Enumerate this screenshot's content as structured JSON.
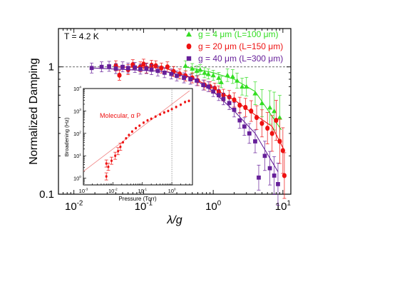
{
  "chart_data": [
    {
      "type": "scatter",
      "xlabel": "λ/g",
      "ylabel": "Normalized Damping",
      "xscale": "log",
      "yscale": "log",
      "xlim": [
        0.006,
        13
      ],
      "ylim": [
        0.1,
        2
      ],
      "x_ticks": [
        0.01,
        0.1,
        1,
        10
      ],
      "x_tick_labels": [
        "10",
        "10",
        "10",
        "10"
      ],
      "x_tick_exponents": [
        "-2",
        "-1",
        "0",
        "1"
      ],
      "y_ticks": [
        0.1,
        1
      ],
      "y_tick_labels": [
        "0.1",
        "1"
      ],
      "reference_line": {
        "y": 1,
        "style": "dashed"
      },
      "annotation": "T = 4.2 K",
      "legend_position": "top-right",
      "series": [
        {
          "name": "g =  4 μm (L=100 μm)",
          "color": "#33dd22",
          "marker": "triangle",
          "points": [
            [
              0.4,
              1.02
            ],
            [
              0.5,
              0.97
            ],
            [
              0.58,
              0.93
            ],
            [
              0.65,
              0.95
            ],
            [
              0.75,
              0.9
            ],
            [
              0.85,
              0.88
            ],
            [
              1.0,
              0.86
            ],
            [
              1.2,
              0.82
            ],
            [
              1.3,
              0.76
            ],
            [
              1.6,
              0.86
            ],
            [
              1.9,
              0.84
            ],
            [
              2.2,
              0.78
            ],
            [
              2.6,
              0.7
            ],
            [
              3.0,
              0.7
            ],
            [
              4.0,
              0.62
            ],
            [
              5.0,
              0.52
            ],
            [
              6.5,
              0.48
            ],
            [
              7.5,
              0.45
            ],
            [
              9.0,
              0.4
            ]
          ],
          "line": [
            [
              0.4,
              1.0
            ],
            [
              1.0,
              0.9
            ],
            [
              2.0,
              0.8
            ],
            [
              4.0,
              0.64
            ],
            [
              9.5,
              0.32
            ]
          ]
        },
        {
          "name": "g = 20 μm (L=150 μm)",
          "color": "#ee1111",
          "marker": "circle",
          "points": [
            [
              0.04,
              1.02
            ],
            [
              0.045,
              0.86
            ],
            [
              0.06,
              0.95
            ],
            [
              0.07,
              1.04
            ],
            [
              0.09,
              1.0
            ],
            [
              0.1,
              1.05
            ],
            [
              0.11,
              0.98
            ],
            [
              0.13,
              1.03
            ],
            [
              0.15,
              1.02
            ],
            [
              0.18,
              0.98
            ],
            [
              0.22,
              1.0
            ],
            [
              0.27,
              0.92
            ],
            [
              0.33,
              0.88
            ],
            [
              0.4,
              0.85
            ],
            [
              0.5,
              0.82
            ],
            [
              0.6,
              0.78
            ],
            [
              0.75,
              0.72
            ],
            [
              0.9,
              0.7
            ],
            [
              1.05,
              0.68
            ],
            [
              1.2,
              0.64
            ],
            [
              1.4,
              0.6
            ],
            [
              1.7,
              0.58
            ],
            [
              2.0,
              0.55
            ],
            [
              2.4,
              0.5
            ],
            [
              2.9,
              0.48
            ],
            [
              3.5,
              0.45
            ],
            [
              4.2,
              0.4
            ],
            [
              5.0,
              0.36
            ],
            [
              6.0,
              0.33
            ],
            [
              7.0,
              0.3
            ],
            [
              8.0,
              0.38
            ],
            [
              9.0,
              0.26
            ],
            [
              10.0,
              0.22
            ],
            [
              10.5,
              0.14
            ]
          ],
          "line": [
            [
              0.04,
              1.0
            ],
            [
              0.2,
              0.98
            ],
            [
              0.5,
              0.82
            ],
            [
              1.0,
              0.68
            ],
            [
              2.0,
              0.55
            ],
            [
              4.0,
              0.42
            ],
            [
              7.0,
              0.34
            ],
            [
              10.5,
              0.22
            ]
          ]
        },
        {
          "name": "g = 40 μm (L=300 μm)",
          "color": "#661f99",
          "marker": "square",
          "points": [
            [
              0.018,
              0.98
            ],
            [
              0.025,
              1.0
            ],
            [
              0.032,
              1.01
            ],
            [
              0.04,
              0.97
            ],
            [
              0.05,
              1.0
            ],
            [
              0.06,
              0.98
            ],
            [
              0.075,
              0.99
            ],
            [
              0.09,
              0.96
            ],
            [
              0.11,
              0.97
            ],
            [
              0.13,
              0.95
            ],
            [
              0.16,
              0.93
            ],
            [
              0.2,
              0.9
            ],
            [
              0.25,
              0.88
            ],
            [
              0.3,
              0.85
            ],
            [
              0.38,
              0.82
            ],
            [
              0.47,
              0.8
            ],
            [
              0.58,
              0.78
            ],
            [
              0.72,
              0.72
            ],
            [
              0.85,
              0.7
            ],
            [
              1.0,
              0.64
            ],
            [
              1.2,
              0.6
            ],
            [
              1.4,
              0.56
            ],
            [
              1.7,
              0.52
            ],
            [
              2.0,
              0.46
            ],
            [
              2.4,
              0.38
            ],
            [
              2.8,
              0.34
            ],
            [
              3.3,
              0.3
            ],
            [
              4.0,
              0.26
            ],
            [
              4.5,
              0.135
            ],
            [
              5.5,
              0.2
            ],
            [
              6.5,
              0.16
            ],
            [
              7.5,
              0.14
            ],
            [
              8.5,
              0.12
            ]
          ],
          "line": [
            [
              0.018,
              0.98
            ],
            [
              0.2,
              0.92
            ],
            [
              0.5,
              0.82
            ],
            [
              1.0,
              0.64
            ],
            [
              2.0,
              0.45
            ],
            [
              4.0,
              0.3
            ],
            [
              8.5,
              0.15
            ]
          ]
        }
      ]
    },
    {
      "type": "scatter",
      "role": "inset",
      "xlabel": "Pressure (Torr)",
      "ylabel": "Broadening (Hz)",
      "xscale": "log",
      "yscale": "log",
      "xlim": [
        0.001,
        5
      ],
      "ylim": [
        0.5,
        10000
      ],
      "x_ticks": [
        0.001,
        0.01,
        0.1,
        1
      ],
      "x_tick_labels": [
        "10",
        "10",
        "10",
        "10"
      ],
      "x_tick_exponents": [
        "-3",
        "-2",
        "-1",
        "0"
      ],
      "y_ticks": [
        1,
        10,
        100,
        1000,
        10000
      ],
      "y_tick_labels": [
        "10",
        "10",
        "10",
        "10",
        "10"
      ],
      "y_tick_exponents": [
        "0",
        "1",
        "2",
        "3",
        "4"
      ],
      "reference_line": {
        "x": 1,
        "style": "dotted"
      },
      "annotation": "Molecular, α P",
      "series": [
        {
          "color": "#ee1111",
          "marker": "circle",
          "points": [
            [
              0.006,
              1.2
            ],
            [
              0.006,
              4.5
            ],
            [
              0.007,
              3.2
            ],
            [
              0.009,
              6.0
            ],
            [
              0.012,
              10
            ],
            [
              0.015,
              16
            ],
            [
              0.018,
              25
            ],
            [
              0.022,
              40
            ],
            [
              0.028,
              60
            ],
            [
              0.035,
              85
            ],
            [
              0.045,
              120
            ],
            [
              0.06,
              170
            ],
            [
              0.08,
              220
            ],
            [
              0.11,
              300
            ],
            [
              0.15,
              380
            ],
            [
              0.2,
              450
            ],
            [
              0.28,
              560
            ],
            [
              0.4,
              700
            ],
            [
              0.55,
              850
            ],
            [
              0.75,
              1000
            ],
            [
              1.0,
              1200
            ],
            [
              1.4,
              1500
            ],
            [
              2.0,
              1900
            ],
            [
              2.8,
              2500
            ],
            [
              3.8,
              2800
            ]
          ]
        }
      ],
      "fit_line": [
        [
          0.001,
          2
        ],
        [
          4,
          8000
        ]
      ]
    }
  ]
}
